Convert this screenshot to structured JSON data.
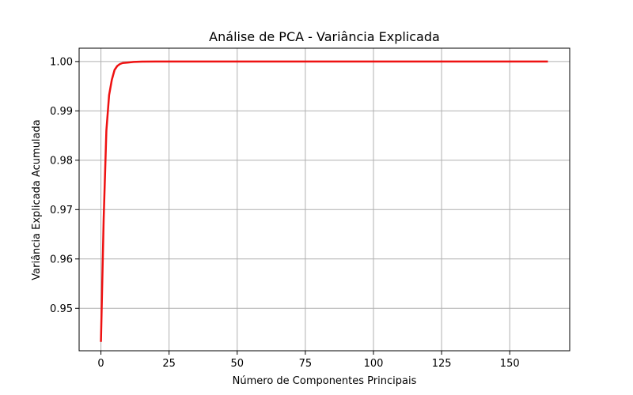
{
  "chart_data": {
    "type": "line",
    "title": "Análise de PCA - Variância Explicada",
    "xlabel": "Número de Componentes Principais",
    "ylabel": "Variância Explicada Acumulada",
    "xlim": [
      -8,
      172
    ],
    "ylim": [
      0.9414,
      1.0027
    ],
    "xticks": [
      0,
      25,
      50,
      75,
      100,
      125,
      150
    ],
    "xtick_labels": [
      "0",
      "25",
      "50",
      "75",
      "100",
      "125",
      "150"
    ],
    "yticks": [
      0.95,
      0.96,
      0.97,
      0.98,
      0.99,
      1.0
    ],
    "ytick_labels": [
      "0.95",
      "0.96",
      "0.97",
      "0.98",
      "0.99",
      "1.00"
    ],
    "grid": true,
    "line_color": "#ee1111",
    "series": [
      {
        "x": [
          0,
          1,
          2,
          3,
          4,
          5,
          6,
          7,
          8,
          10,
          12,
          15,
          20,
          30,
          50,
          100,
          164
        ],
        "y": [
          0.9432,
          0.968,
          0.986,
          0.9932,
          0.9963,
          0.9983,
          0.9991,
          0.9995,
          0.9997,
          0.9998,
          0.99992,
          0.99998,
          1.0,
          1.0,
          1.0,
          1.0,
          1.0
        ]
      }
    ]
  }
}
